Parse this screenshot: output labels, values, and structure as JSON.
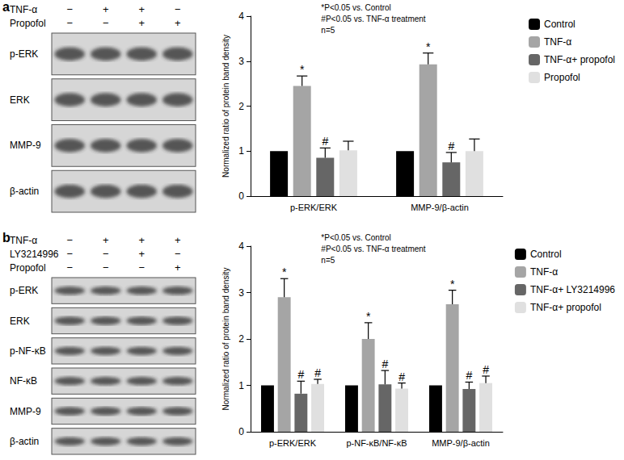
{
  "chart_data": [
    {
      "type": "bar",
      "ylabel": "Normalized ratio of protein band density",
      "categories": [
        "p-ERK/ERK",
        "MMP-9/β-actin"
      ],
      "series": [
        {
          "name": "Control",
          "color": "#000000",
          "values": [
            1,
            1
          ],
          "errors": [
            null,
            null
          ]
        },
        {
          "name": "TNF-α",
          "color": "#a5a5a5",
          "values": [
            2.45,
            2.93
          ],
          "errors": [
            0.22,
            0.25
          ],
          "significance": [
            "*",
            "*"
          ]
        },
        {
          "name": "TNF-α+ propofol",
          "color": "#666666",
          "values": [
            0.85,
            0.75
          ],
          "errors": [
            0.22,
            0.22
          ],
          "significance": [
            "#",
            "#"
          ]
        },
        {
          "name": "Propofol",
          "color": "#e0e0e0",
          "values": [
            1.02,
            1.0
          ],
          "errors": [
            0.2,
            0.27
          ]
        }
      ],
      "annotations": [
        "*P<0.05 vs. Control",
        "#P<0.05 vs. TNF-α treatment",
        "n=5"
      ],
      "ylim": [
        0,
        4
      ],
      "yticks": [
        0,
        1,
        2,
        3,
        4
      ],
      "grid": false,
      "legend": "upper right"
    },
    {
      "type": "bar",
      "ylabel": "Normalized ratio of protein band density",
      "categories": [
        "p-ERK/ERK",
        "p-NF-κB/NF-κB",
        "MMP-9/β-actin"
      ],
      "series": [
        {
          "name": "Control",
          "color": "#000000",
          "values": [
            1,
            1,
            1
          ],
          "errors": [
            null,
            null,
            null
          ]
        },
        {
          "name": "TNF-α",
          "color": "#a5a5a5",
          "values": [
            2.9,
            2.0,
            2.75
          ],
          "errors": [
            0.4,
            0.35,
            0.3
          ],
          "significance": [
            "*",
            "*",
            "*"
          ]
        },
        {
          "name": "TNF-α+ LY3214996",
          "color": "#666666",
          "values": [
            0.82,
            1.02,
            0.92
          ],
          "errors": [
            0.27,
            0.3,
            0.15
          ],
          "significance": [
            "#",
            "#",
            "#"
          ]
        },
        {
          "name": "TNF-α+ propofol",
          "color": "#e0e0e0",
          "values": [
            1.03,
            0.93,
            1.05
          ],
          "errors": [
            0.1,
            0.12,
            0.15
          ],
          "significance": [
            "#",
            "#",
            "#"
          ]
        }
      ],
      "annotations": [
        "*P<0.05 vs. Control",
        "#P<0.05 vs. TNF-α treatment",
        "n=5"
      ],
      "ylim": [
        0,
        4
      ],
      "yticks": [
        0,
        1,
        2,
        3,
        4
      ],
      "grid": false,
      "legend": "upper right"
    }
  ],
  "blots": [
    {
      "panel": "a",
      "treatments": [
        {
          "label": "TNF-α",
          "signs": [
            "−",
            "+",
            "+",
            "−"
          ]
        },
        {
          "label": "Propofol",
          "signs": [
            "−",
            "−",
            "+",
            "+"
          ]
        }
      ],
      "bands": [
        "p-ERK",
        "ERK",
        "MMP-9",
        "β-actin"
      ]
    },
    {
      "panel": "b",
      "treatments": [
        {
          "label": "TNF-α",
          "signs": [
            "−",
            "+",
            "+",
            "+"
          ]
        },
        {
          "label": "LY3214996",
          "signs": [
            "−",
            "−",
            "+",
            "−"
          ]
        },
        {
          "label": "Propofol",
          "signs": [
            "−",
            "−",
            "−",
            "+"
          ]
        }
      ],
      "bands": [
        "p-ERK",
        "ERK",
        "p-NF-κB",
        "NF-κB",
        "MMP-9",
        "β-actin"
      ]
    }
  ]
}
